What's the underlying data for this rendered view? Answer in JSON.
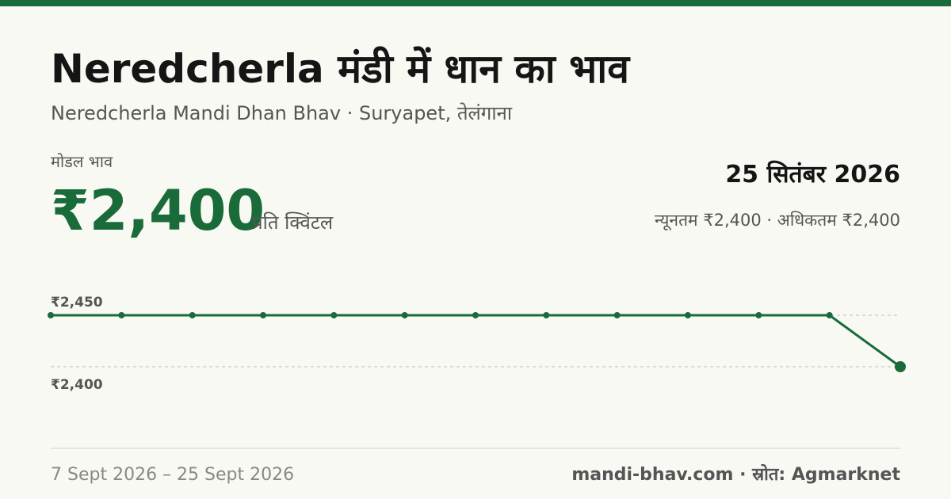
{
  "header": {
    "title": "Neredcherla मंडी में धान का भाव",
    "subtitle": "Neredcherla Mandi Dhan Bhav · Suryapet, तेलंगाना",
    "price_label": "मोडल भाव",
    "price": "₹2,400",
    "unit": "प्रति क्विंटल",
    "date": "25 सितंबर 2026",
    "range": "न्यूनतम ₹2,400 · अधिकतम ₹2,400"
  },
  "chart_data": {
    "type": "line",
    "categories": [
      null,
      null,
      null,
      null,
      null,
      null,
      null,
      null,
      null,
      null,
      null,
      null,
      null
    ],
    "series": [
      {
        "color": "#1a6b3a",
        "values": [
          2450,
          2450,
          2450,
          2450,
          2450,
          2450,
          2450,
          2450,
          2450,
          2450,
          2450,
          2450,
          2400
        ]
      }
    ],
    "ylim": [
      2380,
      2480
    ],
    "yticks": [
      {
        "value": 2400,
        "label": "₹2,400"
      },
      {
        "value": 2450,
        "label": "₹2,450"
      }
    ],
    "grid": true
  },
  "footer": {
    "period": "7 Sept 2026 – 25 Sept 2026",
    "source": "mandi-bhav.com · स्रोत: Agmarknet"
  }
}
